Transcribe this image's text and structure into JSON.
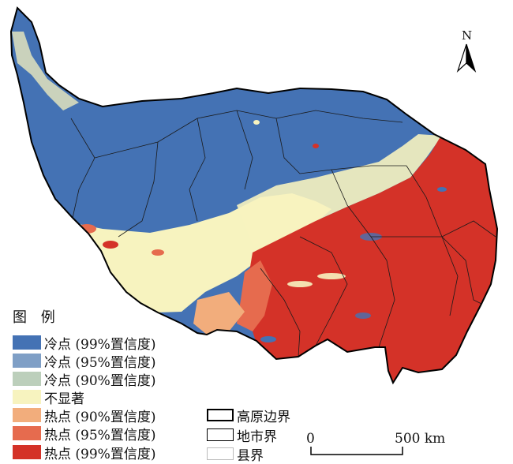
{
  "north_arrow": {
    "label": "N"
  },
  "legend": {
    "title": "图 例",
    "items": [
      {
        "label": "冷点 (99%置信度)",
        "color": "#4472b4"
      },
      {
        "label": "冷点 (95%置信度)",
        "color": "#7f9fc6"
      },
      {
        "label": "冷点 (90%置信度)",
        "color": "#bccfbb"
      },
      {
        "label": "不显著",
        "color": "#f7f3bf"
      },
      {
        "label": "热点 (90%置信度)",
        "color": "#f2ad7c"
      },
      {
        "label": "热点 (95%置信度)",
        "color": "#e66b4e"
      },
      {
        "label": "热点 (99%置信度)",
        "color": "#d43228"
      }
    ]
  },
  "boundaries": [
    {
      "label": "高原边界"
    },
    {
      "label": "地市界"
    },
    {
      "label": "县界"
    }
  ],
  "scale_bar": {
    "start_label": "0",
    "end_label": "500 km"
  },
  "colors": {
    "cold": "#4472b4",
    "hot": "#d43228",
    "neutral": "#f7f3bf"
  }
}
